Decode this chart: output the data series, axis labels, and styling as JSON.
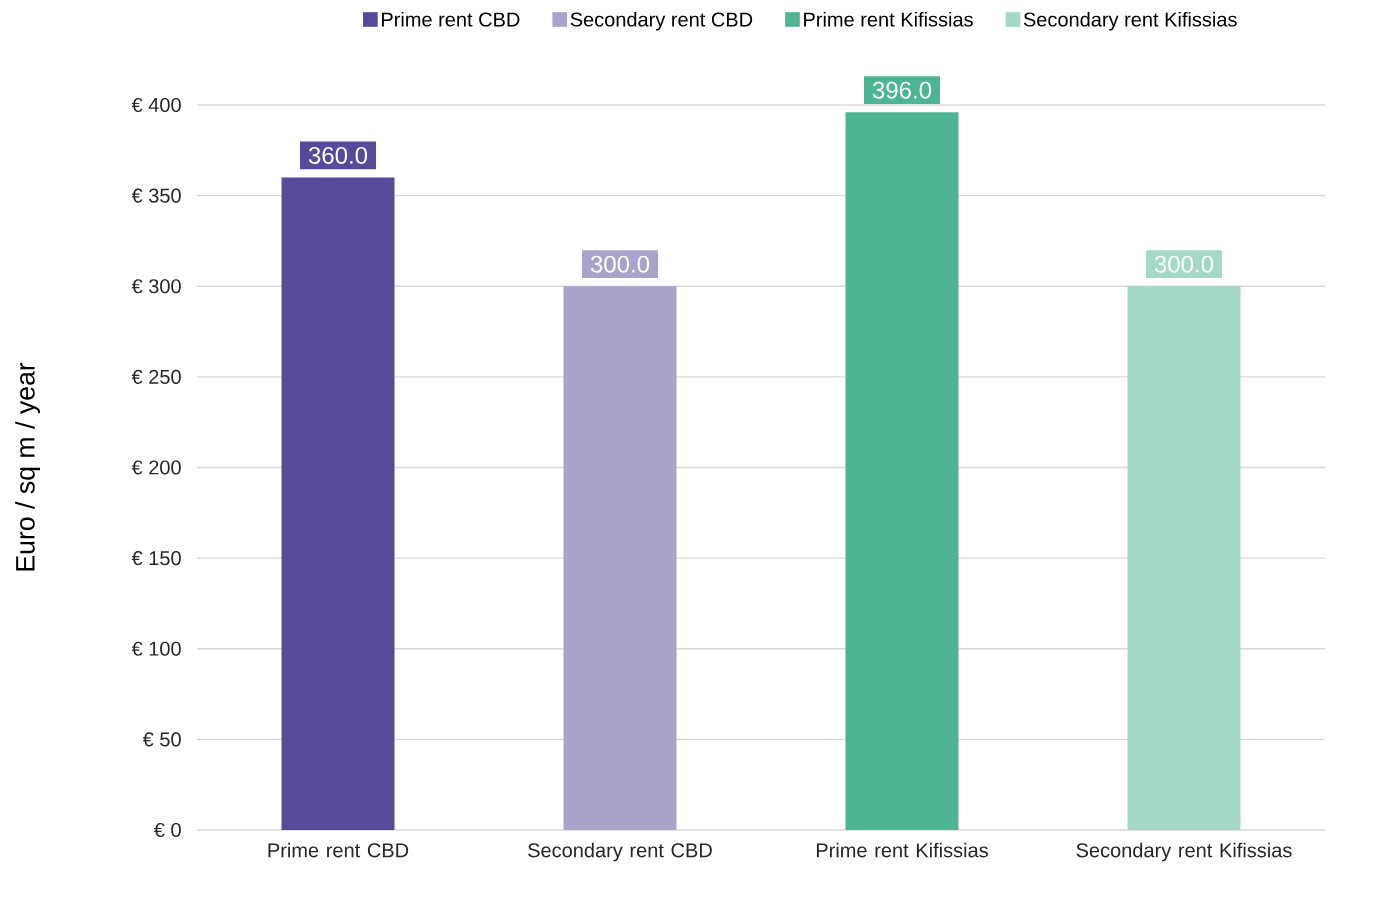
{
  "chart_data": {
    "type": "bar",
    "ylabel": "Euro / sq m / year",
    "categories": [
      "Prime rent CBD",
      "Secondary rent CBD",
      "Prime rent Kifissias",
      "Secondary rent Kifissias"
    ],
    "series": [
      {
        "name": "Prime rent CBD",
        "color": "#574a9b",
        "values": [
          360,
          null,
          null,
          null
        ],
        "value_labels": [
          "360.0",
          null,
          null,
          null
        ]
      },
      {
        "name": "Secondary rent CBD",
        "color": "#a9a3cc",
        "values": [
          null,
          300,
          null,
          null
        ],
        "value_labels": [
          null,
          "300.0",
          null,
          null
        ]
      },
      {
        "name": "Prime rent Kifissias",
        "color": "#4db593",
        "values": [
          null,
          null,
          396,
          null
        ],
        "value_labels": [
          null,
          null,
          "396.0",
          null
        ]
      },
      {
        "name": "Secondary rent Kifissias",
        "color": "#a3d9c6",
        "values": [
          null,
          null,
          null,
          300
        ],
        "value_labels": [
          null,
          null,
          null,
          "300.0"
        ]
      }
    ],
    "ylim": [
      0,
      400
    ],
    "yticks": [
      {
        "value": 0,
        "label": "€ 0"
      },
      {
        "value": 50,
        "label": "€ 50"
      },
      {
        "value": 100,
        "label": "€ 100"
      },
      {
        "value": 150,
        "label": "€ 150"
      },
      {
        "value": 200,
        "label": "€ 200"
      },
      {
        "value": 250,
        "label": "€ 250"
      },
      {
        "value": 300,
        "label": "€ 300"
      },
      {
        "value": 350,
        "label": "€ 350"
      },
      {
        "value": 400,
        "label": "€ 400"
      }
    ],
    "grid": "y",
    "legend": "top"
  }
}
